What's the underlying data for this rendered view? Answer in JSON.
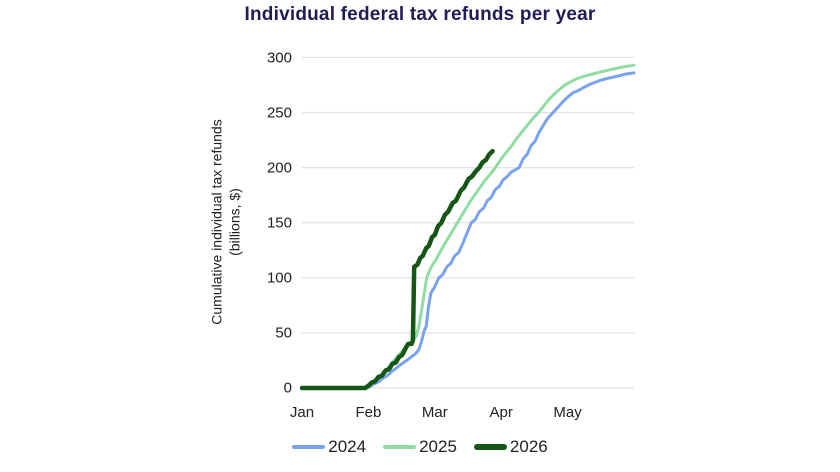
{
  "colors": {
    "title": "#201C55",
    "axis_text": "#212121",
    "grid": "#E4E4E4",
    "background": "#FFFFFF"
  },
  "chart_data": {
    "type": "line",
    "title": "Individual federal tax refunds per year",
    "ylabel_line1": "Cumulative individual tax refunds",
    "ylabel_line2": "(billions, $)",
    "xlabel": "",
    "x_unit": "months since Jan 1 (0=Jan, 1=Feb, 2=Mar, 3=Apr, 4=May, 5=Jun)",
    "xlim": [
      0,
      5
    ],
    "ylim": [
      0,
      300
    ],
    "grid": true,
    "legend_position": "bottom",
    "x_ticks": [
      {
        "pos": 0,
        "label": "Jan"
      },
      {
        "pos": 1,
        "label": "Feb"
      },
      {
        "pos": 2,
        "label": "Mar"
      },
      {
        "pos": 3,
        "label": "Apr"
      },
      {
        "pos": 4,
        "label": "May"
      }
    ],
    "y_ticks": [
      0,
      50,
      100,
      150,
      200,
      250,
      300
    ],
    "series": [
      {
        "name": "2024",
        "color": "#79A3EE",
        "width": 3,
        "points": [
          [
            0,
            0
          ],
          [
            0.98,
            0
          ],
          [
            1.04,
            2
          ],
          [
            1.1,
            4
          ],
          [
            1.16,
            6
          ],
          [
            1.22,
            9
          ],
          [
            1.28,
            11
          ],
          [
            1.35,
            15
          ],
          [
            1.42,
            18
          ],
          [
            1.48,
            21
          ],
          [
            1.55,
            24
          ],
          [
            1.6,
            26
          ],
          [
            1.66,
            29
          ],
          [
            1.71,
            31
          ],
          [
            1.76,
            35
          ],
          [
            1.8,
            42
          ],
          [
            1.84,
            52
          ],
          [
            1.87,
            56
          ],
          [
            1.9,
            72
          ],
          [
            1.94,
            86
          ],
          [
            2.0,
            92
          ],
          [
            2.06,
            100
          ],
          [
            2.12,
            103
          ],
          [
            2.18,
            110
          ],
          [
            2.24,
            113
          ],
          [
            2.3,
            120
          ],
          [
            2.36,
            123
          ],
          [
            2.42,
            131
          ],
          [
            2.48,
            140
          ],
          [
            2.55,
            150
          ],
          [
            2.61,
            153
          ],
          [
            2.67,
            160
          ],
          [
            2.73,
            163
          ],
          [
            2.79,
            170
          ],
          [
            2.85,
            173
          ],
          [
            2.91,
            180
          ],
          [
            2.97,
            183
          ],
          [
            3.03,
            189
          ],
          [
            3.09,
            192
          ],
          [
            3.15,
            196
          ],
          [
            3.21,
            198
          ],
          [
            3.27,
            200
          ],
          [
            3.33,
            208
          ],
          [
            3.39,
            212
          ],
          [
            3.45,
            220
          ],
          [
            3.51,
            224
          ],
          [
            3.57,
            232
          ],
          [
            3.63,
            238
          ],
          [
            3.69,
            244
          ],
          [
            3.75,
            248
          ],
          [
            3.81,
            252
          ],
          [
            3.87,
            256
          ],
          [
            3.93,
            260
          ],
          [
            4.0,
            264
          ],
          [
            4.08,
            268
          ],
          [
            4.16,
            270
          ],
          [
            4.25,
            273
          ],
          [
            4.35,
            276
          ],
          [
            4.48,
            279
          ],
          [
            4.6,
            281
          ],
          [
            4.75,
            283
          ],
          [
            4.88,
            285
          ],
          [
            5.0,
            286
          ]
        ]
      },
      {
        "name": "2025",
        "color": "#92DCA4",
        "width": 3,
        "points": [
          [
            0,
            0
          ],
          [
            0.97,
            0
          ],
          [
            1.04,
            3
          ],
          [
            1.12,
            7
          ],
          [
            1.2,
            12
          ],
          [
            1.28,
            17
          ],
          [
            1.36,
            23
          ],
          [
            1.44,
            29
          ],
          [
            1.52,
            34
          ],
          [
            1.6,
            39
          ],
          [
            1.66,
            43
          ],
          [
            1.72,
            47
          ],
          [
            1.76,
            56
          ],
          [
            1.8,
            70
          ],
          [
            1.84,
            86
          ],
          [
            1.88,
            100
          ],
          [
            1.93,
            108
          ],
          [
            1.98,
            113
          ],
          [
            2.05,
            120
          ],
          [
            2.12,
            128
          ],
          [
            2.19,
            135
          ],
          [
            2.26,
            142
          ],
          [
            2.33,
            149
          ],
          [
            2.4,
            156
          ],
          [
            2.47,
            163
          ],
          [
            2.54,
            170
          ],
          [
            2.61,
            176
          ],
          [
            2.68,
            182
          ],
          [
            2.75,
            188
          ],
          [
            2.82,
            193
          ],
          [
            2.9,
            199
          ],
          [
            3.0,
            208
          ],
          [
            3.08,
            214
          ],
          [
            3.16,
            220
          ],
          [
            3.24,
            227
          ],
          [
            3.32,
            233
          ],
          [
            3.4,
            239
          ],
          [
            3.48,
            245
          ],
          [
            3.56,
            250
          ],
          [
            3.64,
            256
          ],
          [
            3.72,
            262
          ],
          [
            3.8,
            267
          ],
          [
            3.88,
            271
          ],
          [
            3.96,
            275
          ],
          [
            4.05,
            278
          ],
          [
            4.15,
            281
          ],
          [
            4.25,
            283
          ],
          [
            4.38,
            285
          ],
          [
            4.5,
            287
          ],
          [
            4.65,
            289
          ],
          [
            4.8,
            291
          ],
          [
            5.0,
            293
          ]
        ]
      },
      {
        "name": "2026",
        "color": "#165617",
        "width": 4.5,
        "points": [
          [
            0,
            0
          ],
          [
            0.95,
            0
          ],
          [
            1.0,
            2
          ],
          [
            1.05,
            5
          ],
          [
            1.1,
            6
          ],
          [
            1.15,
            10
          ],
          [
            1.2,
            11
          ],
          [
            1.26,
            16
          ],
          [
            1.31,
            17
          ],
          [
            1.36,
            22
          ],
          [
            1.41,
            23
          ],
          [
            1.46,
            28
          ],
          [
            1.51,
            30
          ],
          [
            1.56,
            36
          ],
          [
            1.6,
            40
          ],
          [
            1.65,
            40
          ],
          [
            1.67,
            43
          ],
          [
            1.69,
            110
          ],
          [
            1.74,
            112
          ],
          [
            1.78,
            118
          ],
          [
            1.82,
            120
          ],
          [
            1.87,
            127
          ],
          [
            1.91,
            129
          ],
          [
            1.96,
            137
          ],
          [
            2.0,
            139
          ],
          [
            2.05,
            147
          ],
          [
            2.1,
            150
          ],
          [
            2.15,
            157
          ],
          [
            2.2,
            160
          ],
          [
            2.27,
            168
          ],
          [
            2.32,
            170
          ],
          [
            2.39,
            179
          ],
          [
            2.44,
            182
          ],
          [
            2.51,
            190
          ],
          [
            2.56,
            192
          ],
          [
            2.62,
            197
          ],
          [
            2.67,
            200
          ],
          [
            2.72,
            205
          ],
          [
            2.77,
            207
          ],
          [
            2.82,
            212
          ],
          [
            2.87,
            215
          ]
        ]
      }
    ]
  }
}
